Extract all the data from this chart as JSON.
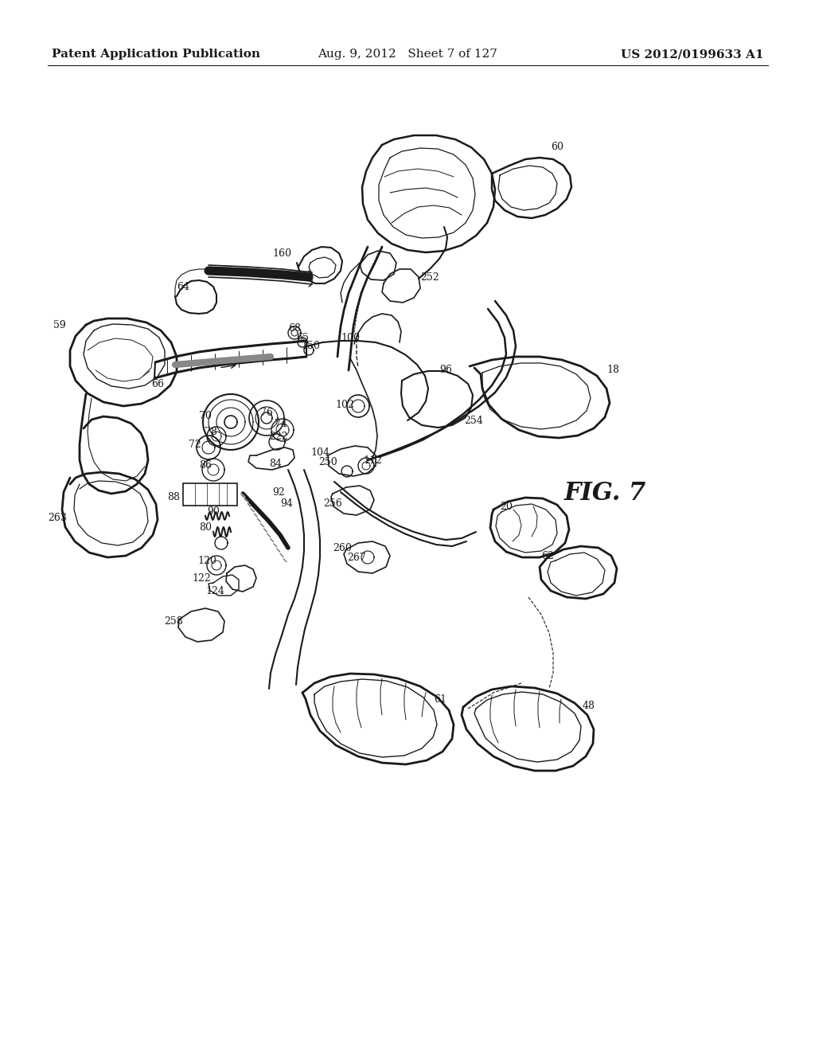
{
  "background_color": "#ffffff",
  "header_left": "Patent Application Publication",
  "header_center": "Aug. 9, 2012   Sheet 7 of 127",
  "header_right": "US 2012/0199633 A1",
  "header_fontsize": 11,
  "fig_label": "FIG. 7",
  "fig_label_fontsize": 22,
  "label_fontsize": 9,
  "font_color": "#1a1a1a",
  "line_color": "#1a1a1a",
  "line_width": 1.0
}
